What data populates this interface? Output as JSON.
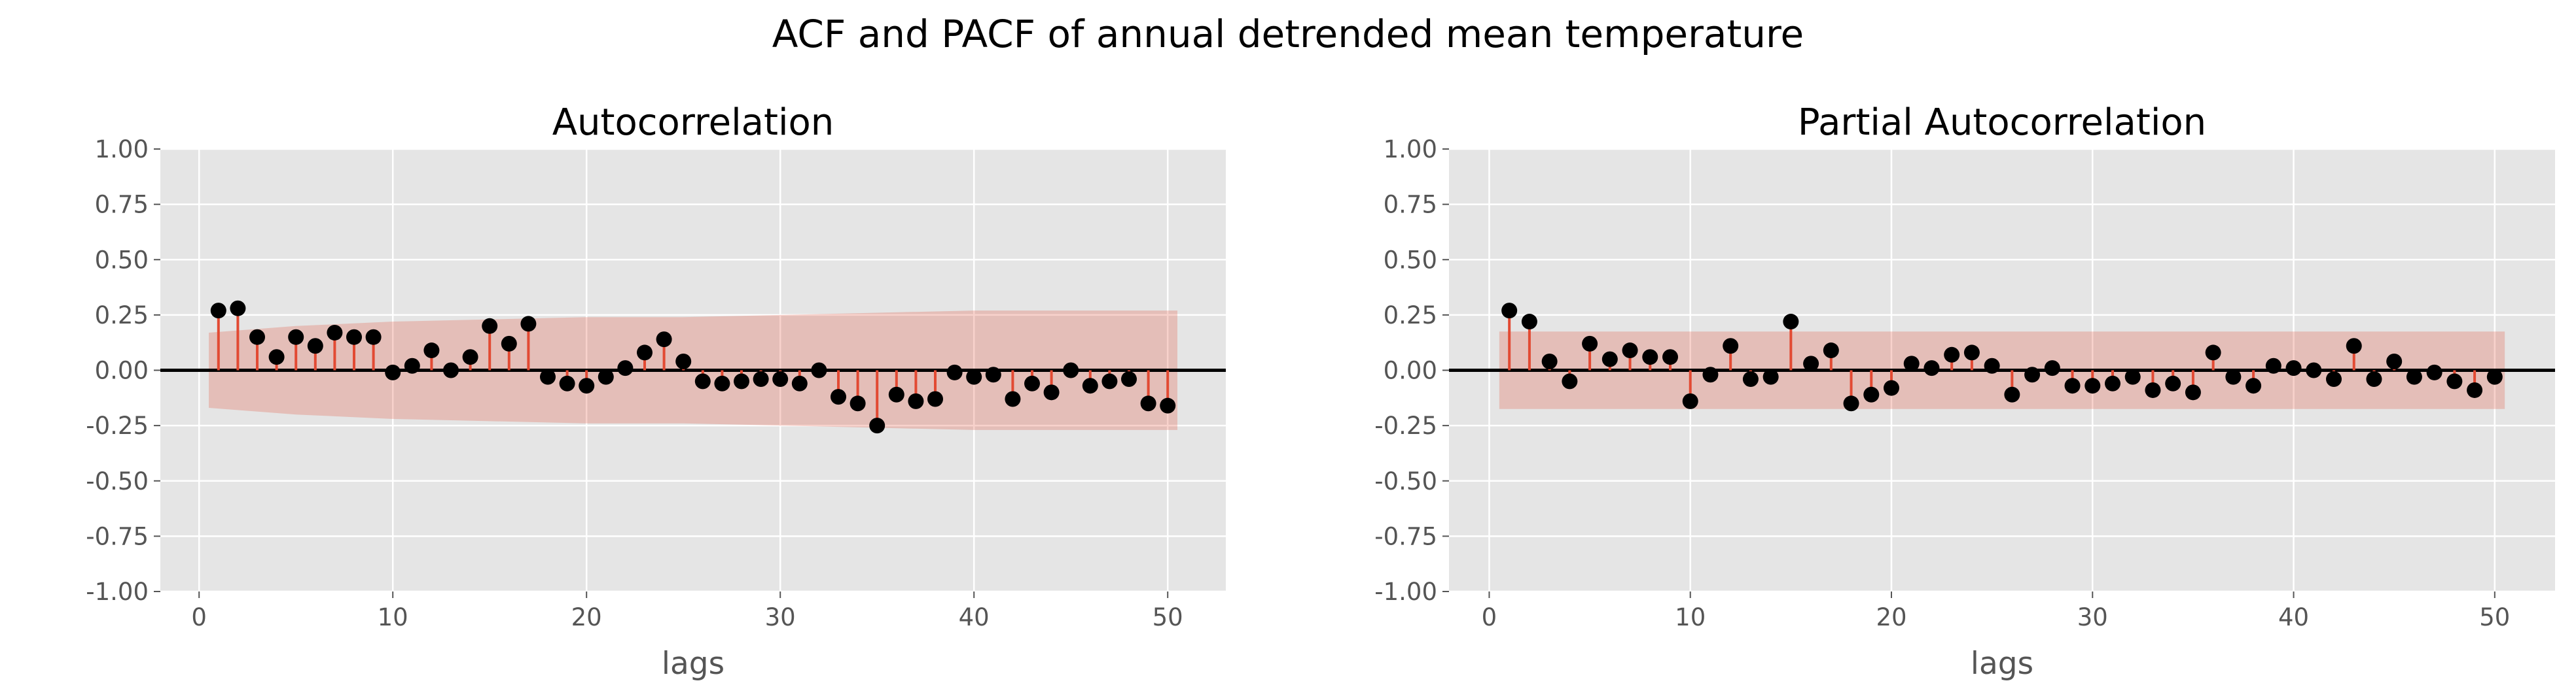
{
  "figure": {
    "title": "ACF and PACF of annual detrended mean temperature"
  },
  "chart_data": [
    {
      "type": "stem",
      "title": "Autocorrelation",
      "xlabel": "lags",
      "ylabel": "",
      "xlim": [
        -2,
        53
      ],
      "ylim": [
        -1.0,
        1.0
      ],
      "xticks": [
        0,
        10,
        20,
        30,
        40,
        50
      ],
      "yticks": [
        "-1.00",
        "-0.75",
        "-0.50",
        "-0.25",
        "0.00",
        "0.25",
        "0.50",
        "0.75",
        "1.00"
      ],
      "grid": true,
      "colors": {
        "background": "#e5e5e5",
        "stem": "#e24a33",
        "marker": "#000000",
        "band": "#e24a33"
      },
      "lags": [
        1,
        2,
        3,
        4,
        5,
        6,
        7,
        8,
        9,
        10,
        11,
        12,
        13,
        14,
        15,
        16,
        17,
        18,
        19,
        20,
        21,
        22,
        23,
        24,
        25,
        26,
        27,
        28,
        29,
        30,
        31,
        32,
        33,
        34,
        35,
        36,
        37,
        38,
        39,
        40,
        41,
        42,
        43,
        44,
        45,
        46,
        47,
        48,
        49,
        50
      ],
      "values": [
        0.27,
        0.28,
        0.15,
        0.06,
        0.15,
        0.11,
        0.17,
        0.15,
        0.15,
        -0.01,
        0.02,
        0.09,
        0.0,
        0.06,
        0.2,
        0.12,
        0.21,
        -0.03,
        -0.06,
        -0.07,
        -0.03,
        0.01,
        0.08,
        0.14,
        0.04,
        -0.05,
        -0.06,
        -0.05,
        -0.04,
        -0.04,
        -0.06,
        0.0,
        -0.12,
        -0.15,
        -0.25,
        -0.11,
        -0.14,
        -0.13,
        -0.01,
        -0.03,
        -0.02,
        -0.13,
        -0.06,
        -0.1,
        0.0,
        -0.07,
        -0.05,
        -0.04,
        -0.15,
        -0.16
      ],
      "confidence_band": {
        "x": [
          0.5,
          5,
          10,
          15,
          20,
          25,
          30,
          35,
          40,
          45,
          50.5
        ],
        "upper": [
          0.17,
          0.2,
          0.22,
          0.23,
          0.24,
          0.24,
          0.25,
          0.26,
          0.27,
          0.27,
          0.27
        ],
        "lower": [
          -0.17,
          -0.2,
          -0.22,
          -0.23,
          -0.24,
          -0.24,
          -0.25,
          -0.26,
          -0.27,
          -0.27,
          -0.27
        ]
      }
    },
    {
      "type": "stem",
      "title": "Partial Autocorrelation",
      "xlabel": "lags",
      "ylabel": "",
      "xlim": [
        -2,
        53
      ],
      "ylim": [
        -1.0,
        1.0
      ],
      "xticks": [
        0,
        10,
        20,
        30,
        40,
        50
      ],
      "yticks": [
        "-1.00",
        "-0.75",
        "-0.50",
        "-0.25",
        "0.00",
        "0.25",
        "0.50",
        "0.75",
        "1.00"
      ],
      "grid": true,
      "colors": {
        "background": "#e5e5e5",
        "stem": "#e24a33",
        "marker": "#000000",
        "band": "#e24a33"
      },
      "lags": [
        1,
        2,
        3,
        4,
        5,
        6,
        7,
        8,
        9,
        10,
        11,
        12,
        13,
        14,
        15,
        16,
        17,
        18,
        19,
        20,
        21,
        22,
        23,
        24,
        25,
        26,
        27,
        28,
        29,
        30,
        31,
        32,
        33,
        34,
        35,
        36,
        37,
        38,
        39,
        40,
        41,
        42,
        43,
        44,
        45,
        46,
        47,
        48,
        49,
        50
      ],
      "values": [
        0.27,
        0.22,
        0.04,
        -0.05,
        0.12,
        0.05,
        0.09,
        0.06,
        0.06,
        -0.14,
        -0.02,
        0.11,
        -0.04,
        -0.03,
        0.22,
        0.03,
        0.09,
        -0.15,
        -0.11,
        -0.08,
        0.03,
        0.01,
        0.07,
        0.08,
        0.02,
        -0.11,
        -0.02,
        0.01,
        -0.07,
        -0.07,
        -0.06,
        -0.03,
        -0.09,
        -0.06,
        -0.1,
        0.08,
        -0.03,
        -0.07,
        0.02,
        0.01,
        0.0,
        -0.04,
        0.11,
        -0.04,
        0.04,
        -0.03,
        -0.01,
        -0.05,
        -0.09,
        -0.03
      ],
      "confidence_band": {
        "x": [
          0.5,
          50.5
        ],
        "upper": [
          0.175,
          0.175
        ],
        "lower": [
          -0.175,
          -0.175
        ]
      }
    }
  ]
}
